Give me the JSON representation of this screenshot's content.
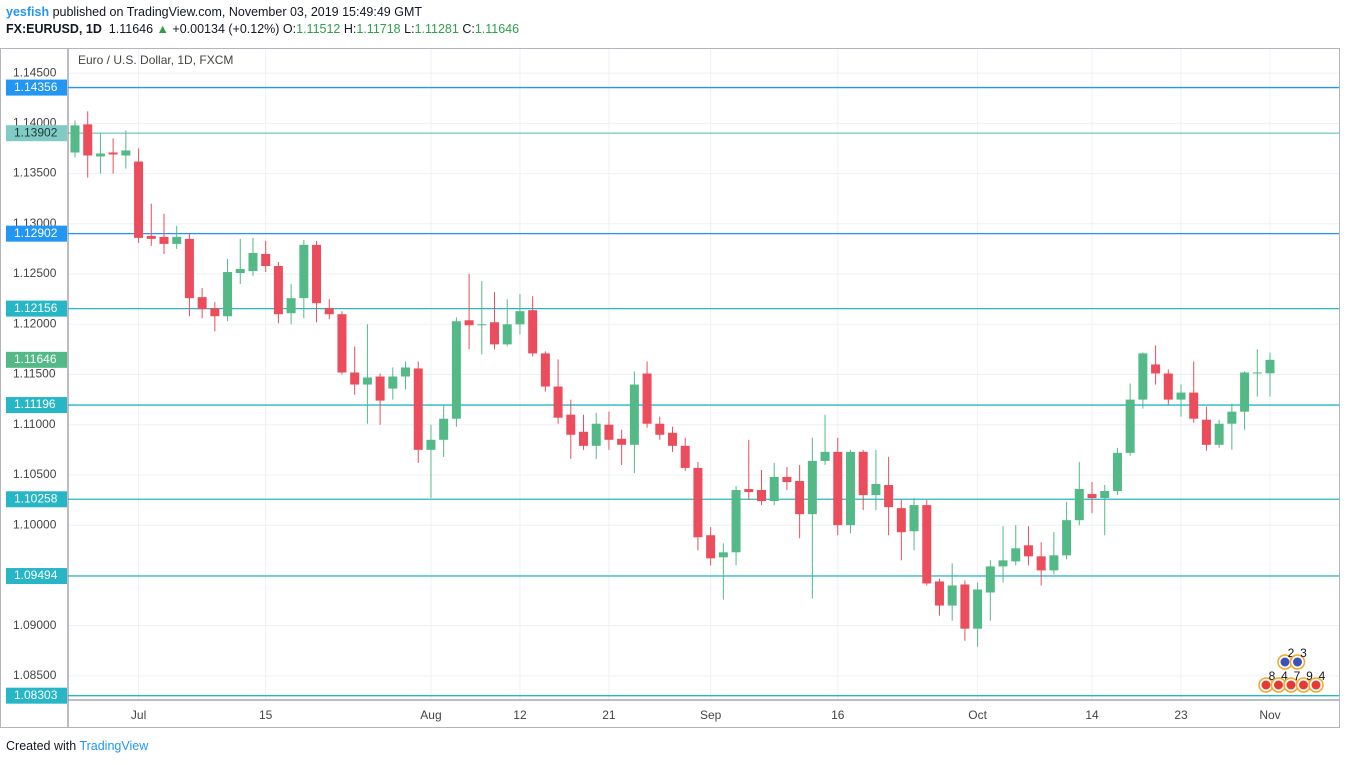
{
  "header": {
    "author": "yesfish",
    "published": " published on TradingView.com, November 03, 2019 15:49:49 GMT",
    "symbol": "FX:EURUSD, 1D",
    "arrow": "▲",
    "change": "+0.00134 (+0.12%)",
    "ohlc_labels": [
      "O:",
      "H:",
      "L:",
      "C:"
    ]
  },
  "footer": {
    "created": "Created with",
    "brand": "TradingView"
  },
  "chart_data": {
    "type": "candlestick",
    "title": "Euro / U.S. Dollar, 1D, FXCM",
    "x": [
      "2019-06-24",
      "2019-06-25",
      "2019-06-26",
      "2019-06-27",
      "2019-06-28",
      "2019-07-01",
      "2019-07-02",
      "2019-07-03",
      "2019-07-04",
      "2019-07-05",
      "2019-07-08",
      "2019-07-09",
      "2019-07-10",
      "2019-07-11",
      "2019-07-12",
      "2019-07-15",
      "2019-07-16",
      "2019-07-17",
      "2019-07-18",
      "2019-07-19",
      "2019-07-22",
      "2019-07-23",
      "2019-07-24",
      "2019-07-25",
      "2019-07-26",
      "2019-07-29",
      "2019-07-30",
      "2019-07-31",
      "2019-08-01",
      "2019-08-02",
      "2019-08-05",
      "2019-08-06",
      "2019-08-07",
      "2019-08-08",
      "2019-08-09",
      "2019-08-12",
      "2019-08-13",
      "2019-08-14",
      "2019-08-15",
      "2019-08-16",
      "2019-08-19",
      "2019-08-20",
      "2019-08-21",
      "2019-08-22",
      "2019-08-23",
      "2019-08-26",
      "2019-08-27",
      "2019-08-28",
      "2019-08-29",
      "2019-08-30",
      "2019-09-02",
      "2019-09-03",
      "2019-09-04",
      "2019-09-05",
      "2019-09-06",
      "2019-09-09",
      "2019-09-10",
      "2019-09-11",
      "2019-09-12",
      "2019-09-13",
      "2019-09-16",
      "2019-09-17",
      "2019-09-18",
      "2019-09-19",
      "2019-09-20",
      "2019-09-23",
      "2019-09-24",
      "2019-09-25",
      "2019-09-26",
      "2019-09-27",
      "2019-09-30",
      "2019-10-01",
      "2019-10-02",
      "2019-10-03",
      "2019-10-04",
      "2019-10-07",
      "2019-10-08",
      "2019-10-09",
      "2019-10-10",
      "2019-10-11",
      "2019-10-14",
      "2019-10-15",
      "2019-10-16",
      "2019-10-17",
      "2019-10-18",
      "2019-10-21",
      "2019-10-22",
      "2019-10-23",
      "2019-10-24",
      "2019-10-25",
      "2019-10-28",
      "2019-10-29",
      "2019-10-30",
      "2019-10-31",
      "2019-11-01"
    ],
    "open": [
      1.1371,
      1.1399,
      1.1367,
      1.1371,
      1.1368,
      1.1362,
      1.1288,
      1.1287,
      1.128,
      1.1285,
      1.1227,
      1.1216,
      1.1208,
      1.1251,
      1.1253,
      1.127,
      1.1258,
      1.1211,
      1.1226,
      1.1279,
      1.1216,
      1.121,
      1.1152,
      1.114,
      1.1148,
      1.1136,
      1.1148,
      1.1156,
      1.1075,
      1.1085,
      1.1106,
      1.1204,
      1.1199,
      1.1202,
      1.118,
      1.12,
      1.1214,
      1.1171,
      1.1138,
      1.111,
      1.1093,
      1.1079,
      1.11,
      1.1086,
      1.108,
      1.1151,
      1.1101,
      1.1092,
      1.1079,
      1.1057,
      1.099,
      1.0968,
      1.0973,
      1.1036,
      1.1035,
      1.1024,
      1.1048,
      1.1044,
      1.1011,
      1.1064,
      1.1073,
      1.1,
      1.1073,
      1.103,
      1.104,
      1.1017,
      1.0994,
      1.102,
      1.0944,
      1.092,
      1.0941,
      1.0897,
      1.0933,
      1.0959,
      1.0964,
      1.098,
      1.0969,
      1.0955,
      1.097,
      1.1005,
      1.1031,
      1.1027,
      1.1034,
      1.1072,
      1.1125,
      1.116,
      1.1151,
      1.1125,
      1.1132,
      1.1105,
      1.108,
      1.1101,
      1.1113,
      1.1151,
      1.11512
    ],
    "high": [
      1.1403,
      1.1412,
      1.139,
      1.1385,
      1.1393,
      1.1375,
      1.132,
      1.131,
      1.1298,
      1.129,
      1.1236,
      1.1222,
      1.1265,
      1.1285,
      1.1286,
      1.1283,
      1.1262,
      1.124,
      1.1284,
      1.1283,
      1.1225,
      1.1213,
      1.1178,
      1.12,
      1.1151,
      1.1157,
      1.1163,
      1.1163,
      1.11,
      1.112,
      1.1207,
      1.125,
      1.1243,
      1.1232,
      1.1225,
      1.123,
      1.1228,
      1.1173,
      1.1165,
      1.1125,
      1.111,
      1.1112,
      1.1113,
      1.1095,
      1.1153,
      1.1163,
      1.1108,
      1.1098,
      1.1087,
      1.1063,
      1.0998,
      1.0982,
      1.1039,
      1.1085,
      1.1055,
      1.1062,
      1.1058,
      1.106,
      1.1087,
      1.111,
      1.1087,
      1.1075,
      1.1075,
      1.1075,
      1.1068,
      1.1025,
      1.1027,
      1.1025,
      1.0947,
      1.0962,
      1.0945,
      1.0943,
      1.0965,
      1.0999,
      1.1,
      1.0999,
      1.0983,
      1.0993,
      1.1023,
      1.1063,
      1.1043,
      1.104,
      1.1077,
      1.1141,
      1.1172,
      1.1179,
      1.1155,
      1.114,
      1.1163,
      1.1118,
      1.1105,
      1.1121,
      1.1153,
      1.1175,
      1.11718
    ],
    "low": [
      1.1366,
      1.1346,
      1.135,
      1.135,
      1.1355,
      1.1281,
      1.1278,
      1.127,
      1.1275,
      1.1208,
      1.1206,
      1.1193,
      1.1203,
      1.124,
      1.1248,
      1.1252,
      1.1201,
      1.12,
      1.1206,
      1.1202,
      1.1205,
      1.115,
      1.113,
      1.1101,
      1.11,
      1.1125,
      1.1135,
      1.1062,
      1.1027,
      1.1068,
      1.1098,
      1.1175,
      1.117,
      1.1175,
      1.1178,
      1.119,
      1.1168,
      1.1133,
      1.1101,
      1.1066,
      1.1075,
      1.1066,
      1.1075,
      1.106,
      1.1052,
      1.1097,
      1.1085,
      1.1073,
      1.1054,
      1.0975,
      1.096,
      1.0926,
      1.096,
      1.1025,
      1.102,
      1.102,
      1.1035,
      1.0987,
      1.0927,
      1.106,
      1.099,
      1.0992,
      1.1015,
      1.1015,
      1.099,
      1.0965,
      1.0975,
      1.094,
      1.091,
      1.0905,
      1.0885,
      1.0879,
      1.0905,
      1.0943,
      1.096,
      1.096,
      1.094,
      1.0951,
      1.0966,
      1.1,
      1.1012,
      1.099,
      1.103,
      1.1069,
      1.1116,
      1.114,
      1.112,
      1.1108,
      1.1102,
      1.1074,
      1.1077,
      1.1075,
      1.1095,
      1.1128,
      1.11281
    ],
    "close": [
      1.1398,
      1.1368,
      1.137,
      1.1369,
      1.1373,
      1.1286,
      1.1285,
      1.128,
      1.1287,
      1.1226,
      1.1215,
      1.1208,
      1.1252,
      1.1255,
      1.1271,
      1.1258,
      1.121,
      1.1226,
      1.1279,
      1.1221,
      1.121,
      1.1152,
      1.114,
      1.1147,
      1.1124,
      1.1148,
      1.1157,
      1.1075,
      1.1085,
      1.1106,
      1.1203,
      1.1199,
      1.12,
      1.118,
      1.12,
      1.1213,
      1.1171,
      1.1138,
      1.1107,
      1.109,
      1.1079,
      1.1101,
      1.1085,
      1.108,
      1.114,
      1.1101,
      1.109,
      1.1079,
      1.1057,
      1.0988,
      1.0967,
      1.0973,
      1.1035,
      1.1033,
      1.1024,
      1.1048,
      1.1043,
      1.1011,
      1.1064,
      1.1073,
      1.1,
      1.1073,
      1.103,
      1.1041,
      1.1018,
      1.0993,
      1.102,
      1.0942,
      1.092,
      1.094,
      1.0897,
      1.0936,
      1.0959,
      1.0965,
      1.0977,
      1.0969,
      1.0955,
      1.097,
      1.1005,
      1.1036,
      1.1027,
      1.1034,
      1.1072,
      1.1125,
      1.1171,
      1.1151,
      1.1125,
      1.1132,
      1.1106,
      1.108,
      1.1101,
      1.1113,
      1.1152,
      1.1152,
      1.11646
    ],
    "up_color": "#53b987",
    "down_color": "#eb4d5c",
    "ylim": [
      1.0826,
      1.1475
    ],
    "yticks": [
      {
        "value": 1.085,
        "label": "1.08500"
      },
      {
        "value": 1.09,
        "label": "1.09000"
      },
      {
        "value": 1.095,
        "label": "1.09500"
      },
      {
        "value": 1.1,
        "label": "1.10000"
      },
      {
        "value": 1.105,
        "label": "1.10500"
      },
      {
        "value": 1.11,
        "label": "1.11000"
      },
      {
        "value": 1.115,
        "label": "1.11500"
      },
      {
        "value": 1.12,
        "label": "1.12000"
      },
      {
        "value": 1.125,
        "label": "1.12500"
      },
      {
        "value": 1.13,
        "label": "1.13000"
      },
      {
        "value": 1.135,
        "label": "1.13500"
      },
      {
        "value": 1.14,
        "label": "1.14000"
      },
      {
        "value": 1.145,
        "label": "1.14500"
      }
    ],
    "xticks": [
      {
        "value": "2019-07-01",
        "label": "Jul"
      },
      {
        "value": "2019-07-15",
        "label": "15"
      },
      {
        "value": "2019-08-01",
        "label": "Aug"
      },
      {
        "value": "2019-08-12",
        "label": "12"
      },
      {
        "value": "2019-08-21",
        "label": "21"
      },
      {
        "value": "2019-09-02",
        "label": "Sep"
      },
      {
        "value": "2019-09-16",
        "label": "16"
      },
      {
        "value": "2019-10-01",
        "label": "Oct"
      },
      {
        "value": "2019-10-14",
        "label": "14"
      },
      {
        "value": "2019-10-23",
        "label": "23"
      },
      {
        "value": "2019-11-01",
        "label": "Nov"
      }
    ],
    "grid": true,
    "levels": [
      1.14356,
      1.13902,
      1.12902,
      1.12156,
      1.11196,
      1.10258,
      1.09494,
      1.08303
    ],
    "level_colors": [
      "#2196f3",
      "#80cbc4",
      "#2196f3",
      "#26b6c6",
      "#26b6c6",
      "#26b6c6",
      "#26b6c6",
      "#26b6c6"
    ],
    "last_price_color": "#53b987",
    "event_labels": [
      [
        "2",
        "3"
      ],
      [
        "8",
        "4",
        "7",
        "9",
        "4"
      ]
    ]
  }
}
